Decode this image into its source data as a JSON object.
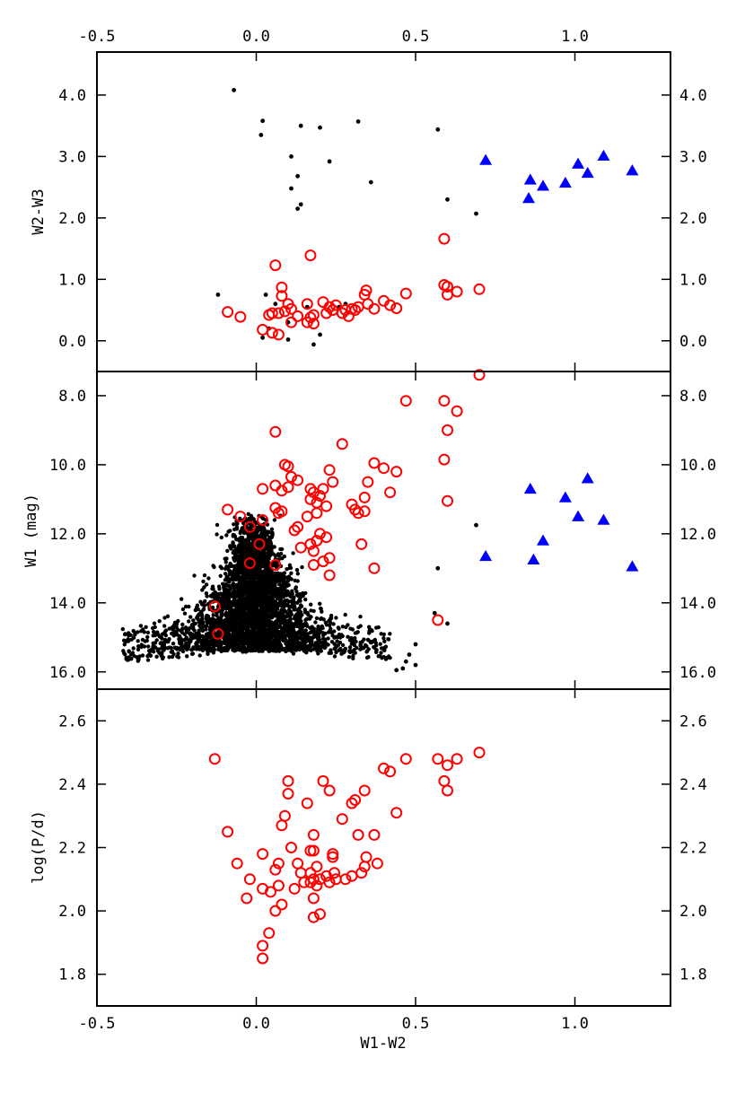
{
  "chart_data": [
    {
      "panel": "top",
      "type": "scatter",
      "title": "",
      "xlabel": "",
      "ylabel": "W2-W3",
      "xlim": [
        -0.5,
        1.3
      ],
      "ylim": [
        -0.5,
        4.7
      ],
      "xticks": [
        -0.5,
        0.0,
        0.5,
        1.0
      ],
      "xtick_labels": [
        "-0.5",
        "0.0",
        "0.5",
        "1.0"
      ],
      "yticks": [
        0.0,
        1.0,
        2.0,
        3.0,
        4.0
      ],
      "ytick_labels": [
        "0.0",
        "1.0",
        "2.0",
        "3.0",
        "4.0"
      ],
      "grid": false,
      "series": [
        {
          "marker": "dot",
          "color": "#000000",
          "points": [
            [
              -0.07,
              4.08
            ],
            [
              0.02,
              3.58
            ],
            [
              0.015,
              3.35
            ],
            [
              0.14,
              3.5
            ],
            [
              0.2,
              3.47
            ],
            [
              0.32,
              3.57
            ],
            [
              0.57,
              3.44
            ],
            [
              0.11,
              3.0
            ],
            [
              0.23,
              2.92
            ],
            [
              0.13,
              2.68
            ],
            [
              0.11,
              2.48
            ],
            [
              0.14,
              2.22
            ],
            [
              0.13,
              2.15
            ],
            [
              0.36,
              2.58
            ],
            [
              0.6,
              2.3
            ],
            [
              0.69,
              2.07
            ],
            [
              -0.12,
              0.75
            ],
            [
              0.03,
              0.75
            ],
            [
              0.06,
              0.6
            ],
            [
              0.02,
              0.05
            ],
            [
              0.1,
              0.02
            ],
            [
              0.2,
              0.1
            ],
            [
              0.18,
              -0.06
            ],
            [
              0.16,
              0.55
            ],
            [
              0.28,
              0.6
            ],
            [
              0.26,
              0.55
            ],
            [
              0.1,
              0.3
            ],
            [
              0.04,
              0.2
            ]
          ]
        },
        {
          "marker": "open-circle",
          "color": "#ff0000",
          "points": [
            [
              -0.09,
              0.47
            ],
            [
              -0.05,
              0.39
            ],
            [
              0.06,
              1.23
            ],
            [
              0.17,
              1.39
            ],
            [
              0.59,
              1.66
            ],
            [
              0.08,
              0.87
            ],
            [
              0.08,
              0.73
            ],
            [
              0.1,
              0.6
            ],
            [
              0.11,
              0.52
            ],
            [
              0.07,
              0.45
            ],
            [
              0.04,
              0.42
            ],
            [
              0.05,
              0.45
            ],
            [
              0.09,
              0.48
            ],
            [
              0.13,
              0.4
            ],
            [
              0.11,
              0.3
            ],
            [
              0.02,
              0.18
            ],
            [
              0.05,
              0.13
            ],
            [
              0.07,
              0.1
            ],
            [
              0.16,
              0.6
            ],
            [
              0.17,
              0.38
            ],
            [
              0.18,
              0.42
            ],
            [
              0.18,
              0.28
            ],
            [
              0.16,
              0.3
            ],
            [
              0.21,
              0.63
            ],
            [
              0.22,
              0.45
            ],
            [
              0.23,
              0.55
            ],
            [
              0.24,
              0.5
            ],
            [
              0.25,
              0.58
            ],
            [
              0.27,
              0.45
            ],
            [
              0.28,
              0.5
            ],
            [
              0.29,
              0.4
            ],
            [
              0.3,
              0.52
            ],
            [
              0.31,
              0.5
            ],
            [
              0.32,
              0.55
            ],
            [
              0.34,
              0.75
            ],
            [
              0.345,
              0.82
            ],
            [
              0.35,
              0.6
            ],
            [
              0.37,
              0.52
            ],
            [
              0.4,
              0.65
            ],
            [
              0.42,
              0.58
            ],
            [
              0.44,
              0.53
            ],
            [
              0.47,
              0.77
            ],
            [
              0.59,
              0.91
            ],
            [
              0.6,
              0.88
            ],
            [
              0.6,
              0.75
            ],
            [
              0.63,
              0.8
            ],
            [
              0.7,
              0.84
            ]
          ]
        },
        {
          "marker": "triangle",
          "color": "#0000ff",
          "points": [
            [
              0.72,
              2.94
            ],
            [
              0.86,
              2.62
            ],
            [
              0.855,
              2.32
            ],
            [
              0.9,
              2.52
            ],
            [
              0.97,
              2.57
            ],
            [
              1.01,
              2.88
            ],
            [
              1.04,
              2.73
            ],
            [
              1.09,
              3.01
            ],
            [
              1.18,
              2.77
            ]
          ]
        }
      ]
    },
    {
      "panel": "middle",
      "type": "scatter",
      "title": "",
      "xlabel": "",
      "ylabel": "W1 (mag)",
      "xlim": [
        -0.5,
        1.3
      ],
      "ylim": [
        16.5,
        7.3
      ],
      "yticks": [
        8.0,
        10.0,
        12.0,
        14.0,
        16.0
      ],
      "ytick_labels": [
        "8.0",
        "10.0",
        "12.0",
        "14.0",
        "16.0"
      ],
      "grid": false,
      "dense_cloud": {
        "marker": "dot",
        "color": "#000000",
        "description_values": {
          "x_center": -0.01,
          "x_spread": 0.07,
          "y_top": 11.4,
          "y_bottom": 15.4,
          "x_tail_left": -0.42,
          "x_tail_right": 0.42
        }
      },
      "series": [
        {
          "marker": "dot",
          "color": "#000000",
          "points": [
            [
              0.69,
              11.75
            ],
            [
              0.57,
              13.0
            ],
            [
              0.56,
              14.3
            ],
            [
              0.6,
              14.6
            ],
            [
              0.5,
              15.2
            ],
            [
              0.48,
              15.5
            ],
            [
              0.46,
              15.9
            ],
            [
              0.44,
              15.95
            ],
            [
              0.5,
              15.8
            ],
            [
              0.47,
              15.7
            ]
          ]
        },
        {
          "marker": "open-circle",
          "color": "#ff0000",
          "points": [
            [
              0.7,
              7.4
            ],
            [
              0.47,
              8.15
            ],
            [
              0.59,
              8.15
            ],
            [
              0.63,
              8.45
            ],
            [
              0.6,
              9.0
            ],
            [
              0.06,
              9.05
            ],
            [
              0.59,
              9.85
            ],
            [
              0.27,
              9.4
            ],
            [
              0.6,
              11.05
            ],
            [
              0.09,
              10.0
            ],
            [
              0.1,
              10.05
            ],
            [
              0.11,
              10.35
            ],
            [
              0.13,
              10.45
            ],
            [
              0.23,
              10.15
            ],
            [
              0.24,
              10.5
            ],
            [
              0.37,
              9.95
            ],
            [
              0.4,
              10.1
            ],
            [
              0.44,
              10.2
            ],
            [
              0.42,
              10.8
            ],
            [
              0.35,
              10.5
            ],
            [
              0.34,
              10.95
            ],
            [
              0.02,
              10.7
            ],
            [
              0.06,
              10.6
            ],
            [
              0.08,
              10.75
            ],
            [
              0.1,
              10.65
            ],
            [
              0.17,
              10.7
            ],
            [
              0.18,
              10.8
            ],
            [
              0.2,
              10.9
            ],
            [
              0.21,
              10.7
            ],
            [
              0.17,
              11.0
            ],
            [
              0.19,
              11.1
            ],
            [
              0.22,
              11.2
            ],
            [
              0.16,
              11.5
            ],
            [
              0.19,
              11.4
            ],
            [
              0.3,
              11.15
            ],
            [
              0.31,
              11.3
            ],
            [
              0.32,
              11.4
            ],
            [
              0.34,
              11.35
            ],
            [
              -0.09,
              11.3
            ],
            [
              -0.05,
              11.5
            ],
            [
              0.06,
              11.25
            ],
            [
              0.07,
              11.4
            ],
            [
              0.08,
              11.35
            ],
            [
              0.13,
              11.8
            ],
            [
              0.12,
              11.9
            ],
            [
              0.2,
              12.0
            ],
            [
              0.19,
              12.2
            ],
            [
              0.17,
              12.3
            ],
            [
              0.18,
              12.5
            ],
            [
              0.14,
              12.4
            ],
            [
              0.22,
              12.1
            ],
            [
              0.21,
              12.8
            ],
            [
              0.23,
              12.7
            ],
            [
              0.18,
              12.9
            ],
            [
              0.33,
              12.3
            ],
            [
              0.37,
              13.0
            ],
            [
              0.23,
              13.2
            ],
            [
              -0.02,
              11.8
            ],
            [
              0.02,
              11.6
            ],
            [
              -0.02,
              12.85
            ],
            [
              0.01,
              12.3
            ],
            [
              0.06,
              12.9
            ],
            [
              -0.13,
              14.1
            ],
            [
              -0.12,
              14.9
            ],
            [
              0.57,
              14.5
            ]
          ]
        },
        {
          "marker": "triangle",
          "color": "#0000ff",
          "points": [
            [
              0.72,
              12.65
            ],
            [
              0.86,
              10.7
            ],
            [
              0.87,
              12.75
            ],
            [
              0.9,
              12.2
            ],
            [
              0.97,
              10.95
            ],
            [
              1.01,
              11.5
            ],
            [
              1.04,
              10.4
            ],
            [
              1.09,
              11.6
            ],
            [
              1.18,
              12.95
            ]
          ]
        }
      ]
    },
    {
      "panel": "bottom",
      "type": "scatter",
      "title": "",
      "xlabel": "W1-W2",
      "ylabel": "log(P/d)",
      "xlim": [
        -0.5,
        1.3
      ],
      "ylim": [
        1.7,
        2.7
      ],
      "xticks": [
        -0.5,
        0.0,
        0.5,
        1.0
      ],
      "xtick_labels": [
        "-0.5",
        "0.0",
        "0.5",
        "1.0"
      ],
      "yticks": [
        1.8,
        2.0,
        2.2,
        2.4,
        2.6
      ],
      "ytick_labels": [
        "1.8",
        "2.0",
        "2.2",
        "2.4",
        "2.6"
      ],
      "grid": false,
      "series": [
        {
          "marker": "open-circle",
          "color": "#ff0000",
          "points": [
            [
              -0.13,
              2.48
            ],
            [
              -0.09,
              2.25
            ],
            [
              -0.06,
              2.15
            ],
            [
              -0.03,
              2.04
            ],
            [
              -0.02,
              2.1
            ],
            [
              0.02,
              2.18
            ],
            [
              0.02,
              2.07
            ],
            [
              0.02,
              1.89
            ],
            [
              0.02,
              1.85
            ],
            [
              0.04,
              1.93
            ],
            [
              0.045,
              2.06
            ],
            [
              0.06,
              2.0
            ],
            [
              0.06,
              2.13
            ],
            [
              0.07,
              2.08
            ],
            [
              0.07,
              2.15
            ],
            [
              0.08,
              2.02
            ],
            [
              0.08,
              2.27
            ],
            [
              0.09,
              2.3
            ],
            [
              0.1,
              2.41
            ],
            [
              0.1,
              2.37
            ],
            [
              0.11,
              2.2
            ],
            [
              0.12,
              2.07
            ],
            [
              0.13,
              2.15
            ],
            [
              0.14,
              2.12
            ],
            [
              0.15,
              2.09
            ],
            [
              0.16,
              2.34
            ],
            [
              0.17,
              2.09
            ],
            [
              0.17,
              2.19
            ],
            [
              0.17,
              2.12
            ],
            [
              0.18,
              2.24
            ],
            [
              0.18,
              2.19
            ],
            [
              0.18,
              2.1
            ],
            [
              0.18,
              2.04
            ],
            [
              0.18,
              1.98
            ],
            [
              0.19,
              2.08
            ],
            [
              0.19,
              2.14
            ],
            [
              0.2,
              1.99
            ],
            [
              0.2,
              2.1
            ],
            [
              0.21,
              2.41
            ],
            [
              0.22,
              2.11
            ],
            [
              0.23,
              2.09
            ],
            [
              0.23,
              2.38
            ],
            [
              0.24,
              2.18
            ],
            [
              0.24,
              2.17
            ],
            [
              0.245,
              2.12
            ],
            [
              0.25,
              2.1
            ],
            [
              0.27,
              2.29
            ],
            [
              0.28,
              2.1
            ],
            [
              0.3,
              2.34
            ],
            [
              0.3,
              2.11
            ],
            [
              0.31,
              2.35
            ],
            [
              0.32,
              2.24
            ],
            [
              0.33,
              2.12
            ],
            [
              0.34,
              2.38
            ],
            [
              0.34,
              2.14
            ],
            [
              0.345,
              2.17
            ],
            [
              0.37,
              2.24
            ],
            [
              0.38,
              2.15
            ],
            [
              0.4,
              2.45
            ],
            [
              0.42,
              2.44
            ],
            [
              0.44,
              2.31
            ],
            [
              0.47,
              2.48
            ],
            [
              0.57,
              2.48
            ],
            [
              0.59,
              2.41
            ],
            [
              0.6,
              2.46
            ],
            [
              0.6,
              2.38
            ],
            [
              0.63,
              2.48
            ],
            [
              0.7,
              2.5
            ]
          ]
        }
      ]
    }
  ]
}
